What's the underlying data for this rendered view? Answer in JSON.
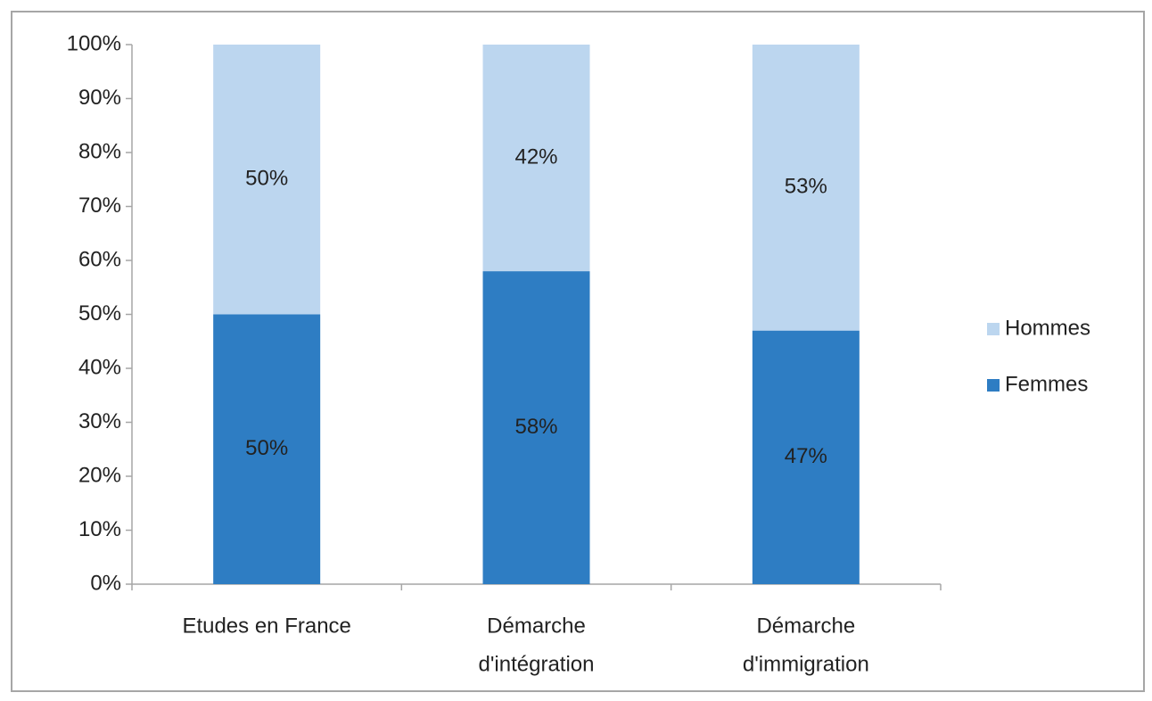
{
  "chart_data": {
    "type": "stacked_bar",
    "categories": [
      [
        "Etudes en France"
      ],
      [
        "Démarche",
        "d'intégration"
      ],
      [
        "Démarche",
        "d'immigration"
      ]
    ],
    "series": [
      {
        "name": "Femmes",
        "color": "#2e7dc3",
        "values": [
          50,
          58,
          47
        ],
        "value_labels": [
          "50%",
          "58%",
          "47%"
        ]
      },
      {
        "name": "Hommes",
        "color": "#bcd6ef",
        "values": [
          50,
          42,
          53
        ],
        "value_labels": [
          "50%",
          "42%",
          "53%"
        ]
      }
    ],
    "ylim": [
      0,
      100
    ],
    "yticks": [
      {
        "value": 0,
        "label": "0%"
      },
      {
        "value": 10,
        "label": "10%"
      },
      {
        "value": 20,
        "label": "20%"
      },
      {
        "value": 30,
        "label": "30%"
      },
      {
        "value": 40,
        "label": "40%"
      },
      {
        "value": 50,
        "label": "50%"
      },
      {
        "value": 60,
        "label": "60%"
      },
      {
        "value": 70,
        "label": "70%"
      },
      {
        "value": 80,
        "label": "80%"
      },
      {
        "value": 90,
        "label": "90%"
      },
      {
        "value": 100,
        "label": "100%"
      }
    ],
    "legend": "right"
  }
}
